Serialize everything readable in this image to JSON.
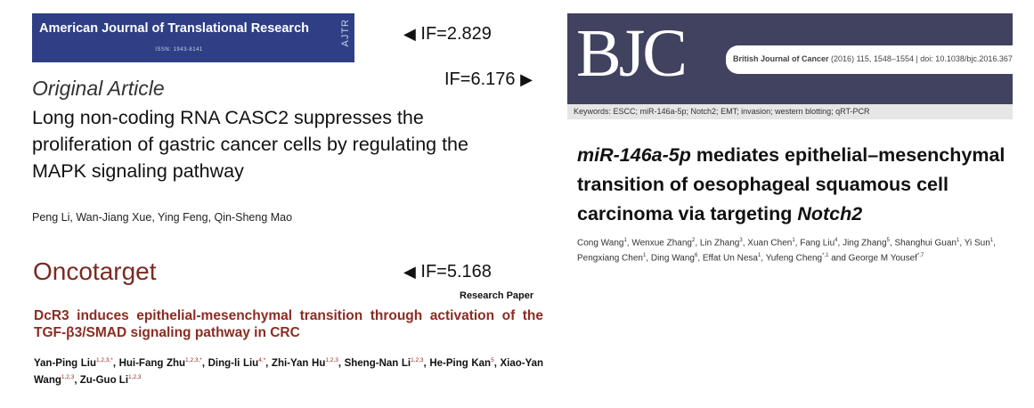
{
  "ajtr": {
    "journal_name": "American Journal of Translational Research",
    "issn": "ISSN: 1943-8141",
    "abbrev": "AJTR",
    "impact_factor": "IF=2.829",
    "arrow": "◀",
    "article_type": "Original Article",
    "article_title": "Long non-coding RNA CASC2 suppresses the proliferation of gastric cancer cells by regulating the MAPK signaling pathway",
    "authors": "Peng Li, Wan-Jiang Xue, Ying Feng, Qin-Sheng Mao"
  },
  "bjc": {
    "logo": "BJC",
    "impact_factor": "IF=6.176",
    "arrow": "▶",
    "journal_name": "British Journal of Cancer",
    "citation": "(2016) 115, 1548–1554 | doi: 10.1038/bjc.2016.367",
    "keywords": "Keywords: ESCC; miR-146a-5p; Notch2; EMT; invasion; western blotting; qRT-PCR",
    "article_title_part1": "miR-146a-5p",
    "article_title_part2": " mediates epithelial–mesenchymal transition of oesophageal squamous cell carcinoma via targeting ",
    "article_title_part3": "Notch2",
    "authors": [
      {
        "name": "Cong Wang",
        "aff": "1",
        "sep": ", "
      },
      {
        "name": "Wenxue Zhang",
        "aff": "2",
        "sep": ", "
      },
      {
        "name": "Lin Zhang",
        "aff": "3",
        "sep": ", "
      },
      {
        "name": "Xuan Chen",
        "aff": "1",
        "sep": ", "
      },
      {
        "name": "Fang Liu",
        "aff": "4",
        "sep": ", "
      },
      {
        "name": "Jing Zhang",
        "aff": "5",
        "sep": ", "
      },
      {
        "name": "Shanghui Guan",
        "aff": "1",
        "sep": ", "
      },
      {
        "name": "Yi Sun",
        "aff": "1",
        "sep": ", "
      },
      {
        "name": "Pengxiang Chen",
        "aff": "1",
        "sep": ", "
      },
      {
        "name": "Ding Wang",
        "aff": "6",
        "sep": ", "
      },
      {
        "name": "Effat Un Nesa",
        "aff": "1",
        "sep": ", "
      },
      {
        "name": "Yufeng Cheng",
        "aff": "*,1",
        "sep": " and "
      },
      {
        "name": "George M Yousef",
        "aff": "*,7",
        "sep": ""
      }
    ]
  },
  "oncotarget": {
    "logo": "Oncotarget",
    "impact_factor": "IF=5.168",
    "arrow": "◀",
    "article_type": "Research Paper",
    "article_title": "DcR3 induces epithelial-mesenchymal transition through activation of the TGF-β3/SMAD signaling pathway in CRC",
    "authors": [
      {
        "name": "Yan-Ping Liu",
        "aff": "1,2,3,*",
        "sep": ", "
      },
      {
        "name": "Hui-Fang Zhu",
        "aff": "1,2,3,*",
        "sep": ", "
      },
      {
        "name": "Ding-li Liu",
        "aff": "4,*",
        "sep": ", "
      },
      {
        "name": "Zhi-Yan Hu",
        "aff": "1,2,3",
        "sep": ", "
      },
      {
        "name": "Sheng-Nan Li",
        "aff": "1,2,3",
        "sep": ", "
      },
      {
        "name": "He-Ping Kan",
        "aff": "5",
        "sep": ", "
      },
      {
        "name": "Xiao-Yan Wang",
        "aff": "1,2,3",
        "sep": ", "
      },
      {
        "name": "Zu-Guo Li",
        "aff": "1,2,3",
        "sep": ""
      }
    ]
  }
}
